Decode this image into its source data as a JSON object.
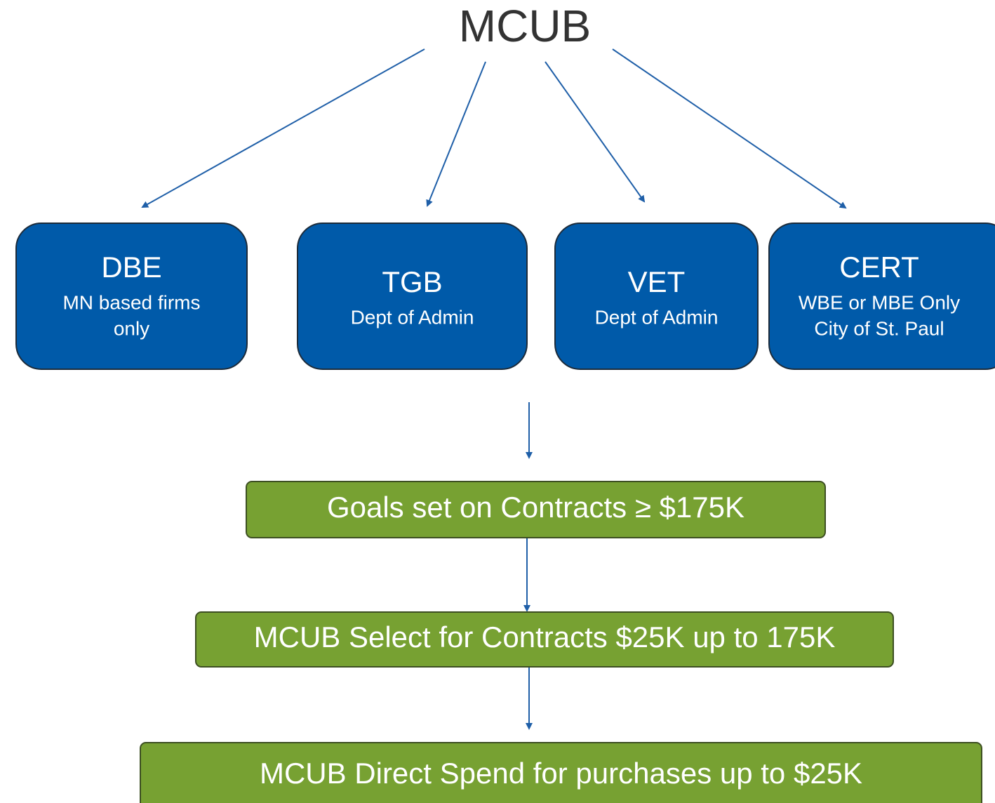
{
  "title": "MCUB",
  "nodes": [
    {
      "label": "DBE",
      "lines": [
        "MN based firms",
        "only"
      ]
    },
    {
      "label": "TGB",
      "lines": [
        "Dept of Admin"
      ]
    },
    {
      "label": "VET",
      "lines": [
        "Dept of Admin"
      ]
    },
    {
      "label": "CERT",
      "lines": [
        "WBE or MBE Only",
        "City of St. Paul"
      ]
    }
  ],
  "steps": [
    "Goals set on Contracts ≥ $175K",
    "MCUB Select for Contracts $25K up to 175K",
    "MCUB Direct Spend for purchases up to $25K"
  ]
}
